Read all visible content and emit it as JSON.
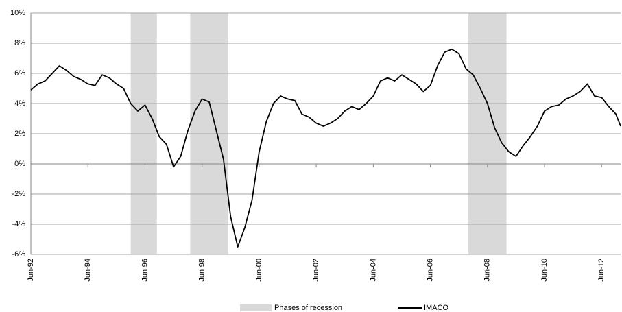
{
  "chart_data": {
    "type": "line",
    "x": [
      "Jun-92",
      "Sep-92",
      "Dec-92",
      "Mar-93",
      "Jun-93",
      "Sep-93",
      "Dec-93",
      "Mar-94",
      "Jun-94",
      "Sep-94",
      "Dec-94",
      "Mar-95",
      "Jun-95",
      "Sep-95",
      "Dec-95",
      "Mar-96",
      "Jun-96",
      "Sep-96",
      "Dec-96",
      "Mar-97",
      "Jun-97",
      "Sep-97",
      "Dec-97",
      "Mar-98",
      "Jun-98",
      "Sep-98",
      "Dec-98",
      "Mar-99",
      "Jun-99",
      "Sep-99",
      "Dec-99",
      "Mar-00",
      "Jun-00",
      "Sep-00",
      "Dec-00",
      "Mar-01",
      "Jun-01",
      "Sep-01",
      "Dec-01",
      "Mar-02",
      "Jun-02",
      "Sep-02",
      "Dec-02",
      "Mar-03",
      "Jun-03",
      "Sep-03",
      "Dec-03",
      "Mar-04",
      "Jun-04",
      "Sep-04",
      "Dec-04",
      "Mar-05",
      "Jun-05",
      "Sep-05",
      "Dec-05",
      "Mar-06",
      "Jun-06",
      "Sep-06",
      "Dec-06",
      "Mar-07",
      "Jun-07",
      "Sep-07",
      "Dec-07",
      "Mar-08",
      "Jun-08",
      "Sep-08",
      "Dec-08",
      "Mar-09",
      "Jun-09",
      "Sep-09",
      "Dec-09",
      "Mar-10",
      "Jun-10",
      "Sep-10",
      "Dec-10",
      "Mar-11",
      "Jun-11",
      "Sep-11",
      "Dec-11",
      "Mar-12",
      "Jun-12",
      "Sep-12",
      "Dec-12",
      "Feb-13"
    ],
    "series": [
      {
        "name": "IMACO",
        "color": "#000000",
        "values": [
          4.9,
          5.3,
          5.5,
          6.0,
          6.5,
          6.2,
          5.8,
          5.6,
          5.3,
          5.2,
          5.9,
          5.7,
          5.3,
          5.0,
          4.0,
          3.5,
          3.9,
          3.0,
          1.8,
          1.3,
          -0.2,
          0.5,
          2.2,
          3.5,
          4.3,
          4.1,
          2.2,
          0.3,
          -3.5,
          -5.5,
          -4.2,
          -2.4,
          0.8,
          2.8,
          4.0,
          4.5,
          4.3,
          4.2,
          3.3,
          3.1,
          2.7,
          2.5,
          2.7,
          3.0,
          3.5,
          3.8,
          3.6,
          4.0,
          4.5,
          5.5,
          5.7,
          5.5,
          5.9,
          5.6,
          5.3,
          4.8,
          5.2,
          6.5,
          7.4,
          7.6,
          7.3,
          6.3,
          5.9,
          5.0,
          4.0,
          2.4,
          1.4,
          0.8,
          0.5,
          1.2,
          1.8,
          2.5,
          3.5,
          3.8,
          3.9,
          4.3,
          4.5,
          4.8,
          5.3,
          4.5,
          4.4,
          3.8,
          3.3,
          2.5
        ]
      }
    ],
    "recession": {
      "name": "Phases of recession",
      "color": "#d9d9d9",
      "periods": [
        [
          "Dec-95",
          "Nov-96"
        ],
        [
          "Jan-98",
          "May-99"
        ],
        [
          "Oct-07",
          "Feb-09"
        ]
      ]
    },
    "xlim": [
      "Jun-92",
      "Feb-13"
    ],
    "xticks": [
      "Jun-92",
      "Jun-94",
      "Jun-96",
      "Jun-98",
      "Jun-00",
      "Jun-02",
      "Jun-04",
      "Jun-06",
      "Jun-08",
      "Jun-10",
      "Jun-12"
    ],
    "ylim": [
      -6,
      10
    ],
    "yticks": [
      {
        "value": -6,
        "label": "-6%"
      },
      {
        "value": -4,
        "label": "-4%"
      },
      {
        "value": -2,
        "label": "-2%"
      },
      {
        "value": 0,
        "label": "0%"
      },
      {
        "value": 2,
        "label": "2%"
      },
      {
        "value": 4,
        "label": "4%"
      },
      {
        "value": 6,
        "label": "6%"
      },
      {
        "value": 8,
        "label": "8%"
      },
      {
        "value": 10,
        "label": "10%"
      }
    ],
    "grid": true,
    "legend": "bottom"
  }
}
